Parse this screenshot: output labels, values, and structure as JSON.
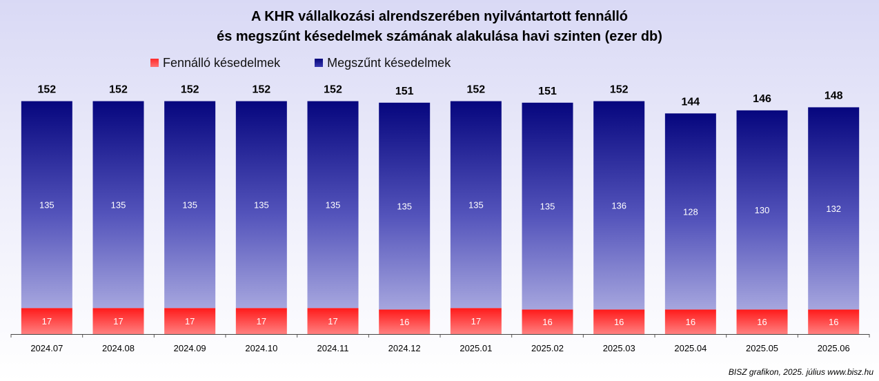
{
  "title_line1": "A KHR vállalkozási alrendszerében nyilvántartott fennálló",
  "title_line2": "és megszűnt késedelmek számának alakulása havi szinten (ezer db)",
  "footer": "BISZ grafikon, 2025. július www.bisz.hu",
  "chart_data": {
    "type": "bar",
    "stacked": true,
    "categories": [
      "2024.07",
      "2024.08",
      "2024.09",
      "2024.10",
      "2024.11",
      "2024.12",
      "2025.01",
      "2025.02",
      "2025.03",
      "2025.04",
      "2025.05",
      "2025.06"
    ],
    "series": [
      {
        "name": "Fennálló késedelmek",
        "values": [
          17,
          17,
          17,
          17,
          17,
          16,
          17,
          16,
          16,
          16,
          16,
          16
        ],
        "color": "#ff2020"
      },
      {
        "name": "Megszűnt késedelmek",
        "values": [
          135,
          135,
          135,
          135,
          135,
          135,
          135,
          135,
          136,
          128,
          130,
          132
        ],
        "color": "#06067e"
      }
    ],
    "totals": [
      152,
      152,
      152,
      152,
      152,
      151,
      152,
      151,
      152,
      144,
      146,
      148
    ],
    "legend_position": "top",
    "grid": false
  }
}
